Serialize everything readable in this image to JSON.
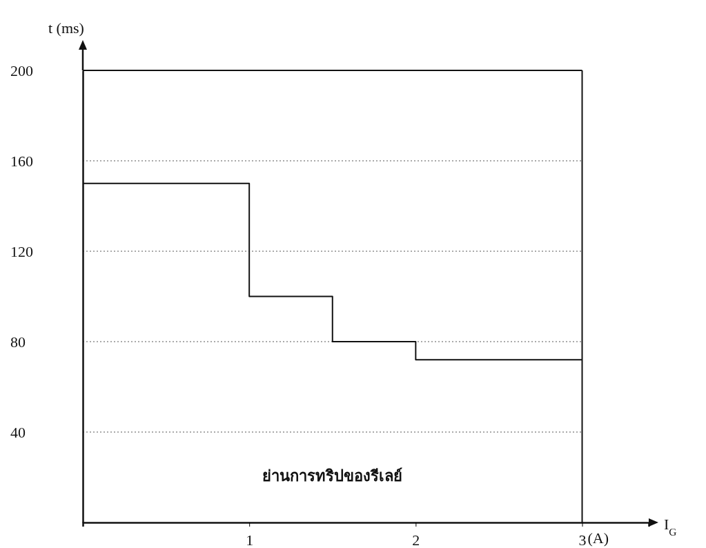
{
  "chart_data": {
    "type": "step",
    "ylabel": "t (ms)",
    "xlabel": "I$_{G}$",
    "x": [
      0,
      1,
      1.5,
      2,
      3
    ],
    "series": [
      {
        "color": "#111111",
        "values": [
          150,
          100,
          80,
          72,
          72
        ]
      }
    ],
    "xlim": [
      0,
      3.4
    ],
    "ylim": [
      0,
      200
    ],
    "ref_lines": [
      {
        "axis": "x",
        "value": 3,
        "color": "#111111",
        "line_style": "solid"
      }
    ],
    "xticks": [
      1,
      2,
      3
    ],
    "yticks": [
      40,
      80,
      120,
      160,
      200
    ],
    "grid": "y",
    "annotations": [
      "ย่านการทริปของรีเลย์",
      "(A)"
    ]
  }
}
